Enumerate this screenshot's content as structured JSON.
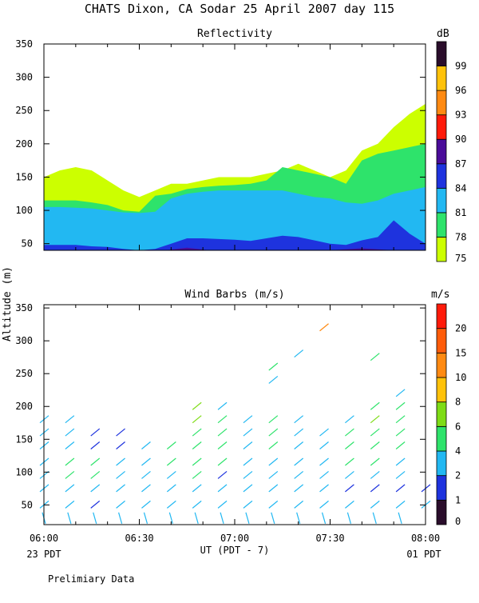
{
  "page": {
    "title": "CHATS Dixon, CA  Sodar  25 April 2007  day 115",
    "ylabel": "Altitude (m)",
    "xlabel": "UT  (PDT - 7)",
    "left_footer": "23 PDT",
    "right_footer": "01 PDT",
    "note": "Prelimiary Data"
  },
  "chart_data": [
    {
      "type": "heatmap",
      "title": "Reflectivity",
      "x_ticks": [
        "06:00",
        "06:30",
        "07:00",
        "07:30",
        "08:00"
      ],
      "y_ticks": [
        50,
        100,
        150,
        200,
        250,
        300,
        350
      ],
      "ylim": [
        40,
        350
      ],
      "xlim": [
        "06:00",
        "08:00"
      ],
      "colorbar": {
        "label": "dB",
        "ticks": [
          75,
          78,
          81,
          84,
          87,
          90,
          93,
          96,
          99
        ],
        "colors": [
          "#ccff00",
          "#2ee36b",
          "#22b8f2",
          "#1e33de",
          "#4a0c99",
          "#ff1a0a",
          "#ff8a12",
          "#ffc20a",
          "#2a0d2b"
        ]
      },
      "bands": [
        {
          "level": 75,
          "color": "#ccff00",
          "x": [
            "06:00",
            "06:05",
            "06:10",
            "06:15",
            "06:20",
            "06:25",
            "06:30",
            "06:35",
            "06:40",
            "06:45",
            "06:50",
            "06:55",
            "07:00",
            "07:05",
            "07:10",
            "07:15",
            "07:20",
            "07:25",
            "07:30",
            "07:35",
            "07:40",
            "07:45",
            "07:50",
            "07:55",
            "08:00"
          ],
          "low": [
            40,
            40,
            40,
            40,
            40,
            40,
            40,
            40,
            40,
            40,
            40,
            40,
            40,
            40,
            40,
            40,
            40,
            40,
            40,
            40,
            40,
            40,
            40,
            40,
            40
          ],
          "high": [
            150,
            160,
            165,
            160,
            145,
            130,
            120,
            130,
            140,
            140,
            145,
            150,
            150,
            150,
            155,
            160,
            170,
            160,
            150,
            160,
            190,
            200,
            225,
            245,
            260
          ]
        },
        {
          "level": 78,
          "color": "#2ee36b",
          "x": [
            "06:00",
            "06:05",
            "06:10",
            "06:15",
            "06:20",
            "06:25",
            "06:30",
            "06:35",
            "06:40",
            "06:45",
            "06:50",
            "06:55",
            "07:00",
            "07:05",
            "07:10",
            "07:15",
            "07:20",
            "07:25",
            "07:30",
            "07:35",
            "07:40",
            "07:45",
            "07:50",
            "07:55",
            "08:00"
          ],
          "low": [
            40,
            40,
            40,
            40,
            40,
            40,
            40,
            40,
            40,
            40,
            40,
            40,
            40,
            40,
            40,
            40,
            40,
            40,
            40,
            40,
            40,
            40,
            40,
            40,
            40
          ],
          "high": [
            115,
            115,
            115,
            112,
            108,
            100,
            98,
            122,
            125,
            132,
            135,
            137,
            138,
            140,
            145,
            165,
            160,
            155,
            150,
            140,
            175,
            185,
            190,
            195,
            200
          ]
        },
        {
          "level": 81,
          "color": "#22b8f2",
          "x": [
            "06:00",
            "06:05",
            "06:10",
            "06:15",
            "06:20",
            "06:25",
            "06:30",
            "06:35",
            "06:40",
            "06:45",
            "06:50",
            "06:55",
            "07:00",
            "07:05",
            "07:10",
            "07:15",
            "07:20",
            "07:25",
            "07:30",
            "07:35",
            "07:40",
            "07:45",
            "07:50",
            "07:55",
            "08:00"
          ],
          "low": [
            40,
            40,
            40,
            40,
            40,
            40,
            40,
            40,
            40,
            40,
            40,
            40,
            40,
            40,
            40,
            40,
            40,
            40,
            40,
            40,
            40,
            40,
            40,
            40,
            40
          ],
          "high": [
            105,
            105,
            104,
            103,
            100,
            97,
            96,
            98,
            118,
            125,
            128,
            130,
            130,
            130,
            130,
            130,
            125,
            120,
            118,
            112,
            110,
            115,
            125,
            130,
            135
          ]
        },
        {
          "level": 84,
          "color": "#1e33de",
          "x": [
            "06:00",
            "06:05",
            "06:10",
            "06:15",
            "06:20",
            "06:25",
            "06:30",
            "06:35",
            "06:40",
            "06:45",
            "06:50",
            "06:55",
            "07:00",
            "07:05",
            "07:10",
            "07:15",
            "07:20",
            "07:25",
            "07:30",
            "07:35",
            "07:40",
            "07:45",
            "07:50",
            "07:55",
            "08:00"
          ],
          "low": [
            40,
            40,
            40,
            40,
            40,
            40,
            40,
            40,
            40,
            40,
            40,
            40,
            40,
            40,
            40,
            40,
            40,
            40,
            40,
            40,
            40,
            40,
            40,
            40,
            40
          ],
          "high": [
            48,
            48,
            48,
            46,
            45,
            42,
            40,
            42,
            50,
            58,
            58,
            57,
            56,
            54,
            58,
            62,
            60,
            55,
            50,
            48,
            55,
            60,
            85,
            65,
            50
          ]
        },
        {
          "level": 87,
          "color": "#4a0c99",
          "x": [
            "06:38",
            "06:45",
            "06:52",
            "07:30",
            "07:40",
            "07:50"
          ],
          "low": [
            40,
            40,
            40,
            40,
            40,
            40
          ],
          "high": [
            40,
            44,
            40,
            40,
            43,
            40
          ]
        }
      ]
    },
    {
      "type": "scatter",
      "title": "Wind Barbs (m/s)",
      "x_ticks": [
        "06:00",
        "06:30",
        "07:00",
        "07:30",
        "08:00"
      ],
      "y_ticks": [
        50,
        100,
        150,
        200,
        250,
        300,
        350
      ],
      "ylim": [
        20,
        355
      ],
      "xlim": [
        "06:00",
        "08:00"
      ],
      "colorbar": {
        "label": "m/s",
        "ticks": [
          0,
          1,
          2,
          4,
          6,
          8,
          10,
          15,
          20
        ],
        "colors": [
          "#2a0d2b",
          "#1e33de",
          "#22b8f2",
          "#2ee36b",
          "#7edc16",
          "#ffc20a",
          "#ff8a12",
          "#ff5c0a",
          "#ff1a0a"
        ]
      },
      "times": [
        "06:00",
        "06:08",
        "06:16",
        "06:24",
        "06:32",
        "06:40",
        "06:48",
        "06:56",
        "07:04",
        "07:12",
        "07:20",
        "07:28",
        "07:36",
        "07:44",
        "07:52",
        "08:00"
      ],
      "altitudes": [
        30,
        50,
        75,
        95,
        115,
        140,
        160,
        180,
        200,
        220,
        240,
        260,
        280,
        300,
        320
      ],
      "barbs": [
        {
          "t": "06:00",
          "alt": 30,
          "speed": 2
        },
        {
          "t": "06:00",
          "alt": 50,
          "speed": 3
        },
        {
          "t": "06:00",
          "alt": 75,
          "speed": 3
        },
        {
          "t": "06:00",
          "alt": 95,
          "speed": 3
        },
        {
          "t": "06:00",
          "alt": 115,
          "speed": 3
        },
        {
          "t": "06:00",
          "alt": 140,
          "speed": 3
        },
        {
          "t": "06:00",
          "alt": 160,
          "speed": 3
        },
        {
          "t": "06:00",
          "alt": 180,
          "speed": 3
        },
        {
          "t": "06:08",
          "alt": 30,
          "speed": 2
        },
        {
          "t": "06:08",
          "alt": 50,
          "speed": 3
        },
        {
          "t": "06:08",
          "alt": 75,
          "speed": 3
        },
        {
          "t": "06:08",
          "alt": 95,
          "speed": 4
        },
        {
          "t": "06:08",
          "alt": 115,
          "speed": 4
        },
        {
          "t": "06:08",
          "alt": 140,
          "speed": 3
        },
        {
          "t": "06:08",
          "alt": 160,
          "speed": 3
        },
        {
          "t": "06:08",
          "alt": 180,
          "speed": 3
        },
        {
          "t": "06:16",
          "alt": 30,
          "speed": 2
        },
        {
          "t": "06:16",
          "alt": 50,
          "speed": 1
        },
        {
          "t": "06:16",
          "alt": 75,
          "speed": 3
        },
        {
          "t": "06:16",
          "alt": 95,
          "speed": 4
        },
        {
          "t": "06:16",
          "alt": 115,
          "speed": 4
        },
        {
          "t": "06:16",
          "alt": 140,
          "speed": 1
        },
        {
          "t": "06:16",
          "alt": 160,
          "speed": 1
        },
        {
          "t": "06:24",
          "alt": 30,
          "speed": 2
        },
        {
          "t": "06:24",
          "alt": 50,
          "speed": 3
        },
        {
          "t": "06:24",
          "alt": 75,
          "speed": 3
        },
        {
          "t": "06:24",
          "alt": 95,
          "speed": 3
        },
        {
          "t": "06:24",
          "alt": 115,
          "speed": 3
        },
        {
          "t": "06:24",
          "alt": 140,
          "speed": 1
        },
        {
          "t": "06:24",
          "alt": 160,
          "speed": 1
        },
        {
          "t": "06:32",
          "alt": 30,
          "speed": 2
        },
        {
          "t": "06:32",
          "alt": 50,
          "speed": 3
        },
        {
          "t": "06:32",
          "alt": 75,
          "speed": 3
        },
        {
          "t": "06:32",
          "alt": 95,
          "speed": 3
        },
        {
          "t": "06:32",
          "alt": 115,
          "speed": 3
        },
        {
          "t": "06:32",
          "alt": 140,
          "speed": 3
        },
        {
          "t": "06:40",
          "alt": 30,
          "speed": 2
        },
        {
          "t": "06:40",
          "alt": 50,
          "speed": 3
        },
        {
          "t": "06:40",
          "alt": 75,
          "speed": 3
        },
        {
          "t": "06:40",
          "alt": 95,
          "speed": 3
        },
        {
          "t": "06:40",
          "alt": 115,
          "speed": 4
        },
        {
          "t": "06:40",
          "alt": 140,
          "speed": 4
        },
        {
          "t": "06:48",
          "alt": 30,
          "speed": 2
        },
        {
          "t": "06:48",
          "alt": 50,
          "speed": 3
        },
        {
          "t": "06:48",
          "alt": 75,
          "speed": 3
        },
        {
          "t": "06:48",
          "alt": 95,
          "speed": 4
        },
        {
          "t": "06:48",
          "alt": 115,
          "speed": 4
        },
        {
          "t": "06:48",
          "alt": 140,
          "speed": 4
        },
        {
          "t": "06:48",
          "alt": 160,
          "speed": 4
        },
        {
          "t": "06:48",
          "alt": 180,
          "speed": 6
        },
        {
          "t": "06:48",
          "alt": 200,
          "speed": 6
        },
        {
          "t": "06:56",
          "alt": 30,
          "speed": 2
        },
        {
          "t": "06:56",
          "alt": 50,
          "speed": 3
        },
        {
          "t": "06:56",
          "alt": 75,
          "speed": 3
        },
        {
          "t": "06:56",
          "alt": 95,
          "speed": 1
        },
        {
          "t": "06:56",
          "alt": 115,
          "speed": 4
        },
        {
          "t": "06:56",
          "alt": 140,
          "speed": 4
        },
        {
          "t": "06:56",
          "alt": 160,
          "speed": 4
        },
        {
          "t": "06:56",
          "alt": 180,
          "speed": 4
        },
        {
          "t": "06:56",
          "alt": 200,
          "speed": 3
        },
        {
          "t": "07:04",
          "alt": 30,
          "speed": 2
        },
        {
          "t": "07:04",
          "alt": 50,
          "speed": 3
        },
        {
          "t": "07:04",
          "alt": 75,
          "speed": 3
        },
        {
          "t": "07:04",
          "alt": 95,
          "speed": 3
        },
        {
          "t": "07:04",
          "alt": 115,
          "speed": 3
        },
        {
          "t": "07:04",
          "alt": 140,
          "speed": 3
        },
        {
          "t": "07:04",
          "alt": 160,
          "speed": 3
        },
        {
          "t": "07:04",
          "alt": 180,
          "speed": 3
        },
        {
          "t": "07:12",
          "alt": 30,
          "speed": 2
        },
        {
          "t": "07:12",
          "alt": 50,
          "speed": 3
        },
        {
          "t": "07:12",
          "alt": 75,
          "speed": 3
        },
        {
          "t": "07:12",
          "alt": 95,
          "speed": 3
        },
        {
          "t": "07:12",
          "alt": 115,
          "speed": 3
        },
        {
          "t": "07:12",
          "alt": 140,
          "speed": 4
        },
        {
          "t": "07:12",
          "alt": 160,
          "speed": 4
        },
        {
          "t": "07:12",
          "alt": 180,
          "speed": 4
        },
        {
          "t": "07:12",
          "alt": 240,
          "speed": 3
        },
        {
          "t": "07:12",
          "alt": 260,
          "speed": 4
        },
        {
          "t": "07:20",
          "alt": 30,
          "speed": 2
        },
        {
          "t": "07:20",
          "alt": 50,
          "speed": 3
        },
        {
          "t": "07:20",
          "alt": 75,
          "speed": 3
        },
        {
          "t": "07:20",
          "alt": 95,
          "speed": 3
        },
        {
          "t": "07:20",
          "alt": 115,
          "speed": 3
        },
        {
          "t": "07:20",
          "alt": 140,
          "speed": 3
        },
        {
          "t": "07:20",
          "alt": 160,
          "speed": 3
        },
        {
          "t": "07:20",
          "alt": 180,
          "speed": 3
        },
        {
          "t": "07:20",
          "alt": 280,
          "speed": 3
        },
        {
          "t": "07:28",
          "alt": 30,
          "speed": 2
        },
        {
          "t": "07:28",
          "alt": 50,
          "speed": 2
        },
        {
          "t": "07:28",
          "alt": 75,
          "speed": 3
        },
        {
          "t": "07:28",
          "alt": 95,
          "speed": 3
        },
        {
          "t": "07:28",
          "alt": 115,
          "speed": 3
        },
        {
          "t": "07:28",
          "alt": 140,
          "speed": 3
        },
        {
          "t": "07:28",
          "alt": 160,
          "speed": 3
        },
        {
          "t": "07:28",
          "alt": 320,
          "speed": 10
        },
        {
          "t": "07:36",
          "alt": 30,
          "speed": 2
        },
        {
          "t": "07:36",
          "alt": 50,
          "speed": 3
        },
        {
          "t": "07:36",
          "alt": 75,
          "speed": 1
        },
        {
          "t": "07:36",
          "alt": 95,
          "speed": 3
        },
        {
          "t": "07:36",
          "alt": 115,
          "speed": 4
        },
        {
          "t": "07:36",
          "alt": 140,
          "speed": 4
        },
        {
          "t": "07:36",
          "alt": 160,
          "speed": 4
        },
        {
          "t": "07:36",
          "alt": 180,
          "speed": 3
        },
        {
          "t": "07:44",
          "alt": 30,
          "speed": 2
        },
        {
          "t": "07:44",
          "alt": 50,
          "speed": 3
        },
        {
          "t": "07:44",
          "alt": 75,
          "speed": 1
        },
        {
          "t": "07:44",
          "alt": 95,
          "speed": 3
        },
        {
          "t": "07:44",
          "alt": 115,
          "speed": 4
        },
        {
          "t": "07:44",
          "alt": 140,
          "speed": 4
        },
        {
          "t": "07:44",
          "alt": 160,
          "speed": 4
        },
        {
          "t": "07:44",
          "alt": 180,
          "speed": 6
        },
        {
          "t": "07:44",
          "alt": 200,
          "speed": 4
        },
        {
          "t": "07:44",
          "alt": 275,
          "speed": 4
        },
        {
          "t": "07:52",
          "alt": 30,
          "speed": 2
        },
        {
          "t": "07:52",
          "alt": 50,
          "speed": 3
        },
        {
          "t": "07:52",
          "alt": 75,
          "speed": 1
        },
        {
          "t": "07:52",
          "alt": 95,
          "speed": 3
        },
        {
          "t": "07:52",
          "alt": 115,
          "speed": 3
        },
        {
          "t": "07:52",
          "alt": 140,
          "speed": 4
        },
        {
          "t": "07:52",
          "alt": 160,
          "speed": 4
        },
        {
          "t": "07:52",
          "alt": 180,
          "speed": 4
        },
        {
          "t": "07:52",
          "alt": 200,
          "speed": 4
        },
        {
          "t": "07:52",
          "alt": 220,
          "speed": 3
        },
        {
          "t": "08:00",
          "alt": 50,
          "speed": 3
        },
        {
          "t": "08:00",
          "alt": 75,
          "speed": 1
        }
      ]
    }
  ]
}
